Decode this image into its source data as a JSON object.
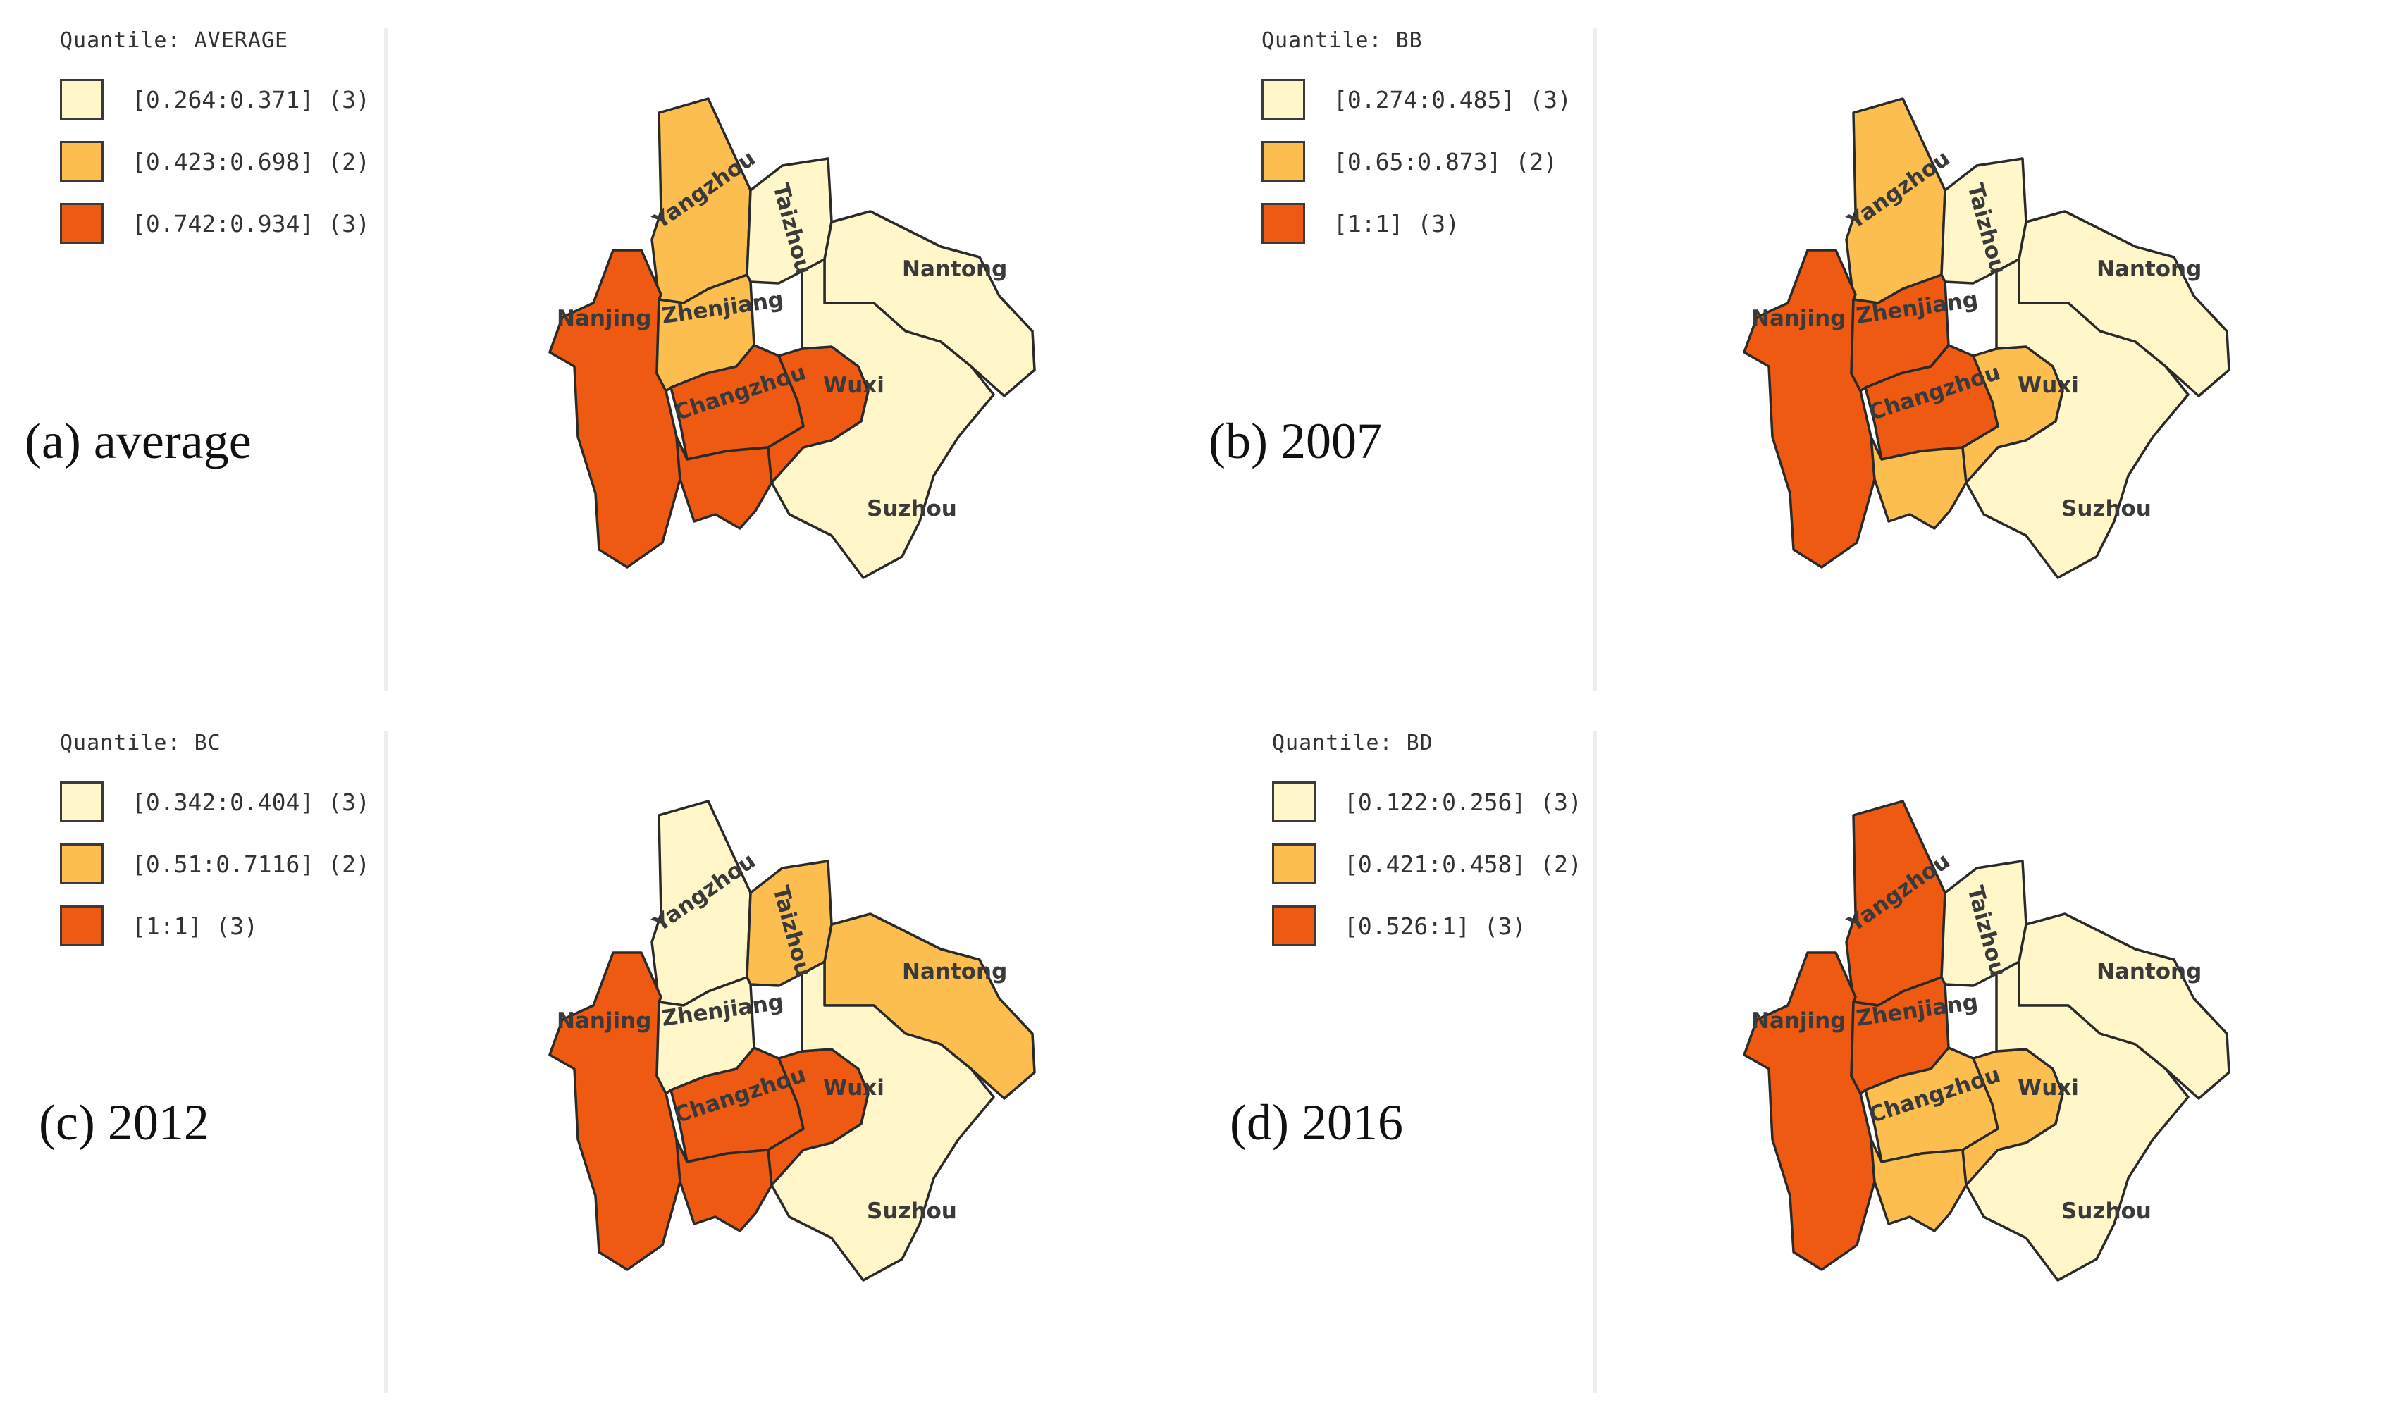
{
  "colors": {
    "light": "#FFF6C9",
    "mid": "#FDBE50",
    "dark": "#EE5A12",
    "border": "#2a2a2a"
  },
  "city_names": {
    "yangzhou": "Yangzhou",
    "taizhou": "Taizhou",
    "nantong": "Nantong",
    "nanjing": "Nanjing",
    "zhenjiang": "Zhenjiang",
    "changzhou": "Changzhou",
    "wuxi": "Wuxi",
    "suzhou": "Suzhou"
  },
  "panels": [
    {
      "label": "(a) average",
      "legend_title": "Quantile: AVERAGE",
      "classes": [
        {
          "range": "[0.264:0.371]",
          "count": "(3)",
          "tier": "light"
        },
        {
          "range": "[0.423:0.698]",
          "count": "(2)",
          "tier": "mid"
        },
        {
          "range": "[0.742:0.934]",
          "count": "(3)",
          "tier": "dark"
        }
      ],
      "fills": {
        "yangzhou": "mid",
        "taizhou": "light",
        "nantong": "light",
        "nanjing": "dark",
        "zhenjiang": "mid",
        "changzhou": "dark",
        "liyang": "dark",
        "wuxi": "dark",
        "suzhou": "light"
      }
    },
    {
      "label": "(b) 2007",
      "legend_title": "Quantile: BB",
      "classes": [
        {
          "range": "[0.274:0.485]",
          "count": "(3)",
          "tier": "light"
        },
        {
          "range": "[0.65:0.873]",
          "count": "(2)",
          "tier": "mid"
        },
        {
          "range": "[1:1]",
          "count": "(3)",
          "tier": "dark"
        }
      ],
      "fills": {
        "yangzhou": "mid",
        "taizhou": "light",
        "nantong": "light",
        "nanjing": "dark",
        "zhenjiang": "dark",
        "changzhou": "dark",
        "liyang": "mid",
        "wuxi": "mid",
        "suzhou": "light"
      }
    },
    {
      "label": "(c) 2012",
      "legend_title": "Quantile: BC",
      "classes": [
        {
          "range": "[0.342:0.404]",
          "count": "(3)",
          "tier": "light"
        },
        {
          "range": "[0.51:0.7116]",
          "count": "(2)",
          "tier": "mid"
        },
        {
          "range": "[1:1]",
          "count": "(3)",
          "tier": "dark"
        }
      ],
      "fills": {
        "yangzhou": "light",
        "taizhou": "mid",
        "nantong": "mid",
        "nanjing": "dark",
        "zhenjiang": "light",
        "changzhou": "dark",
        "liyang": "dark",
        "wuxi": "dark",
        "suzhou": "light"
      }
    },
    {
      "label": "(d) 2016",
      "legend_title": "Quantile: BD",
      "classes": [
        {
          "range": "[0.122:0.256]",
          "count": "(3)",
          "tier": "light"
        },
        {
          "range": "[0.421:0.458]",
          "count": "(2)",
          "tier": "mid"
        },
        {
          "range": "[0.526:1]",
          "count": "(3)",
          "tier": "dark"
        }
      ],
      "fills": {
        "yangzhou": "dark",
        "taizhou": "light",
        "nantong": "light",
        "nanjing": "dark",
        "zhenjiang": "dark",
        "changzhou": "mid",
        "liyang": "mid",
        "wuxi": "mid",
        "suzhou": "light"
      }
    }
  ]
}
